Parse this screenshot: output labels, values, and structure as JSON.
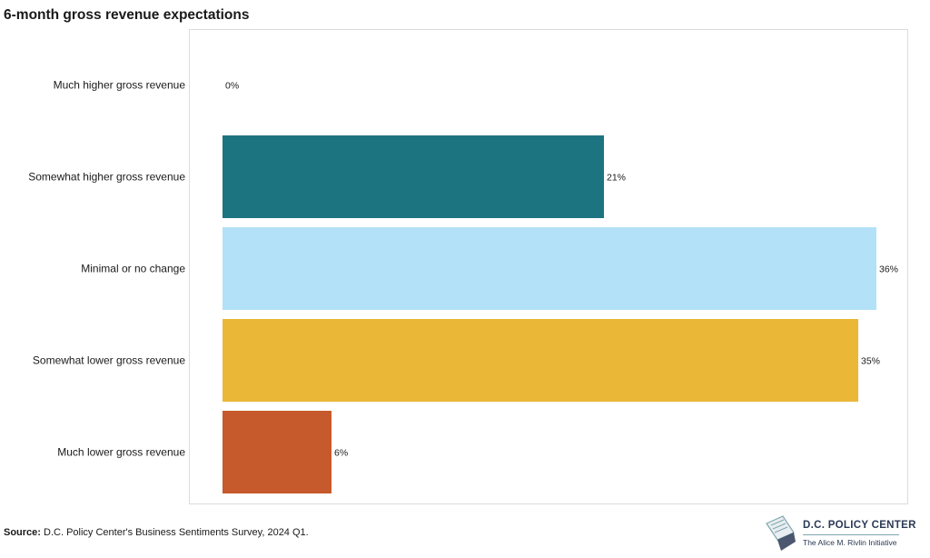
{
  "chart_data": {
    "type": "bar",
    "orientation": "horizontal",
    "title": "6-month gross revenue expectations",
    "xlabel": "",
    "ylabel": "",
    "categories": [
      "Much higher gross revenue",
      "Somewhat higher gross revenue",
      "Minimal or no change",
      "Somewhat lower gross revenue",
      "Much lower gross revenue"
    ],
    "values": [
      0,
      21,
      36,
      35,
      6
    ],
    "value_labels": [
      "0%",
      "21%",
      "36%",
      "35%",
      "6%"
    ],
    "colors": [
      "#1d7481",
      "#1d7481",
      "#b3e1f7",
      "#eab737",
      "#c65a2c"
    ],
    "xlim": [
      0,
      36
    ],
    "grid": false,
    "legend": "none"
  },
  "source": {
    "key": "Source:",
    "text": " D.C. Policy Center's Business Sentiments Survey, 2024 Q1."
  },
  "logo": {
    "name": "D.C. POLICY CENTER",
    "tagline": "The Alice M. Rivlin Initiative",
    "icon": "dc-policy-center-logo-icon"
  }
}
